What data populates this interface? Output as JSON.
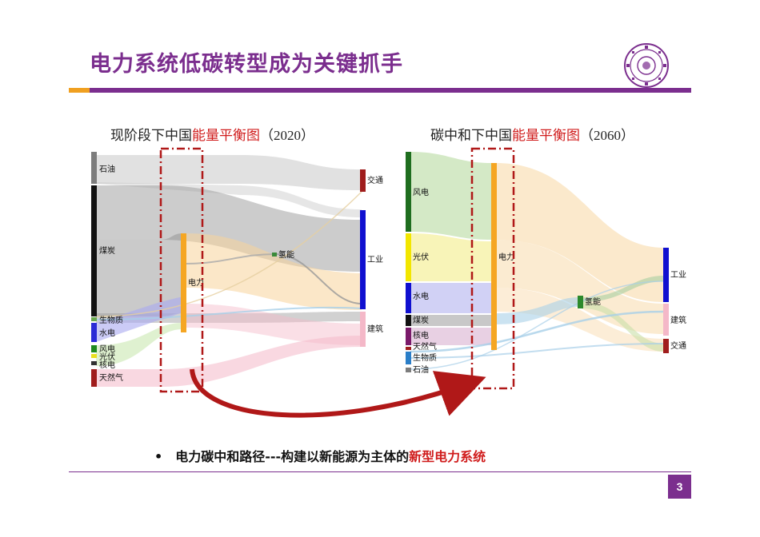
{
  "slide": {
    "title": "电力系统低碳转型成为关键抓手",
    "page_number": "3",
    "colors": {
      "accent": "#7b2e8e",
      "orange": "#f0a020",
      "highlight_red": "#d01c1c"
    }
  },
  "bullet": {
    "prefix": "电力碳中和路径---构建以新能源为主体的",
    "highlight": "新型电力系统"
  },
  "left_diagram": {
    "title_prefix": "现阶段下中国",
    "title_highlight": "能量平衡图",
    "title_suffix": "（2020）",
    "sources": [
      "石油",
      "煤炭",
      "生物质",
      "水电",
      "风电",
      "光伏",
      "核电",
      "天然气"
    ],
    "middle": [
      "电力",
      "氢能"
    ],
    "sinks": [
      "交通",
      "工业",
      "建筑"
    ]
  },
  "right_diagram": {
    "title_prefix": "碳中和下中国",
    "title_highlight": "能量平衡图",
    "title_suffix": "（2060）",
    "sources": [
      "风电",
      "光伏",
      "水电",
      "煤炭",
      "核电",
      "天然气",
      "生物质",
      "石油"
    ],
    "middle": [
      "电力",
      "氢能"
    ],
    "sinks": [
      "工业",
      "建筑",
      "交通"
    ]
  }
}
